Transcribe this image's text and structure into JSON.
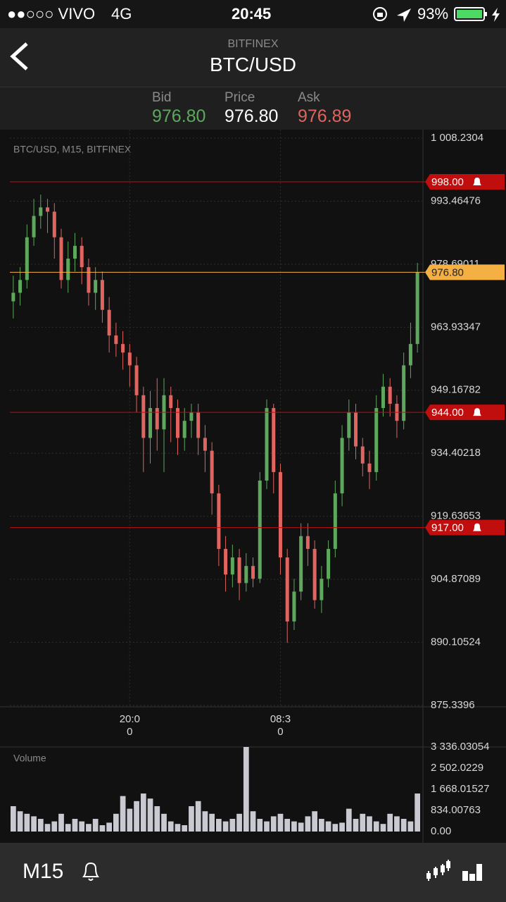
{
  "status_bar": {
    "carrier": "●●○○○ VIVO",
    "network": "4G",
    "time": "20:45",
    "battery": "93%"
  },
  "header": {
    "exchange": "BITFINEX",
    "pair": "BTC/USD"
  },
  "quote": {
    "bid_label": "Bid",
    "bid": "976.80",
    "price_label": "Price",
    "price": "976.80",
    "ask_label": "Ask",
    "ask": "976.89"
  },
  "chart_data": [
    {
      "type": "candlestick",
      "title": "BTC/USD, M15, BITFINEX",
      "open": [
        970,
        972,
        975,
        985,
        990,
        992,
        991,
        985,
        975,
        980,
        983,
        978,
        972,
        975,
        968,
        962,
        960,
        958,
        955,
        948,
        938,
        945,
        940,
        948,
        945,
        938,
        942,
        944,
        938,
        935,
        925,
        912,
        906,
        910,
        904,
        908,
        905,
        928,
        945,
        930,
        910,
        895,
        902,
        915,
        912,
        900,
        905,
        912,
        925,
        938,
        944,
        936,
        932,
        930,
        945,
        950,
        946,
        942,
        955,
        960
      ],
      "high": [
        976,
        978,
        988,
        994,
        995,
        994,
        993,
        987,
        984,
        986,
        985,
        980,
        978,
        977,
        971,
        965,
        963,
        960,
        957,
        950,
        949,
        952,
        952,
        950,
        947,
        945,
        946,
        946,
        941,
        937,
        927,
        915,
        913,
        912,
        911,
        910,
        930,
        947,
        946,
        932,
        912,
        905,
        918,
        918,
        914,
        908,
        914,
        928,
        941,
        947,
        946,
        938,
        935,
        948,
        953,
        952,
        948,
        958,
        965,
        979
      ],
      "low": [
        966,
        969,
        973,
        983,
        987,
        986,
        980,
        973,
        972,
        977,
        974,
        969,
        968,
        965,
        958,
        957,
        954,
        950,
        944,
        930,
        932,
        935,
        930,
        937,
        934,
        935,
        938,
        934,
        930,
        920,
        908,
        902,
        903,
        900,
        902,
        903,
        904,
        926,
        925,
        906,
        890,
        893,
        900,
        908,
        898,
        897,
        903,
        910,
        922,
        935,
        933,
        929,
        926,
        928,
        943,
        943,
        938,
        940,
        952,
        958
      ],
      "close": [
        972,
        975,
        985,
        990,
        992,
        991,
        985,
        975,
        980,
        983,
        978,
        972,
        975,
        968,
        962,
        960,
        958,
        955,
        948,
        938,
        945,
        940,
        948,
        945,
        938,
        942,
        944,
        938,
        935,
        925,
        912,
        906,
        910,
        904,
        908,
        905,
        928,
        945,
        930,
        910,
        895,
        902,
        915,
        912,
        900,
        905,
        912,
        925,
        938,
        944,
        936,
        932,
        930,
        945,
        950,
        946,
        942,
        955,
        960,
        976.8
      ],
      "up_color": "#5ea85e",
      "down_color": "#e0645f",
      "ylim": [
        875.3396,
        1008.2304
      ],
      "yticks": [
        {
          "value": 1008.2304,
          "label": "1 008.2304"
        },
        993.46476,
        978.69011,
        963.93347,
        949.16782,
        934.40218,
        919.63653,
        904.87089,
        890.10524,
        875.3396
      ],
      "xlabels": [
        {
          "index": 17,
          "label": "20:00"
        },
        {
          "index": 39,
          "label": "08:30"
        }
      ],
      "alert_lines": [
        {
          "value": 998,
          "label": "998.00"
        },
        {
          "value": 944,
          "label": "944.00"
        },
        {
          "value": 917,
          "label": "917.00"
        }
      ],
      "alert_color": "#c00d0d",
      "current_price": {
        "value": 976.8,
        "label": "976.80"
      },
      "current_color": "#f5b043",
      "grid": true
    },
    {
      "type": "bar",
      "title": "Volume",
      "values": [
        1000,
        800,
        700,
        600,
        500,
        300,
        400,
        700,
        300,
        500,
        400,
        300,
        500,
        250,
        350,
        700,
        1400,
        900,
        1200,
        1500,
        1300,
        1000,
        700,
        400,
        300,
        250,
        1000,
        1200,
        800,
        700,
        500,
        400,
        500,
        700,
        3336,
        800,
        500,
        400,
        600,
        700,
        500,
        400,
        350,
        600,
        800,
        500,
        400,
        300,
        350,
        900,
        500,
        700,
        600,
        400,
        300,
        700,
        600,
        500,
        400,
        1500
      ],
      "color": "#c9c9d2",
      "ylim": [
        0,
        3336.03054
      ],
      "yticks": [
        {
          "value": 3336.03054,
          "label": "3 336.03054"
        },
        {
          "value": 2502.0229,
          "label": "2 502.0229"
        },
        {
          "value": 1668.01527,
          "label": "1 668.01527"
        },
        834.00763,
        {
          "value": 0,
          "label": "0.00"
        }
      ]
    }
  ],
  "footer": {
    "timeframe": "M15"
  }
}
